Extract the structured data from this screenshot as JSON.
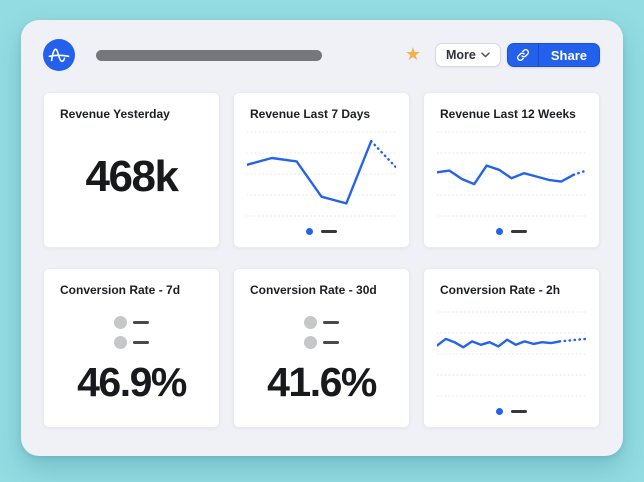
{
  "header": {
    "logo": {
      "icon": "amplitude-logo",
      "bg_color": "#2360ec"
    },
    "title_placeholder": {
      "type": "redacted-bar",
      "color": "#76777b"
    },
    "star": {
      "icon": "star-icon",
      "glyph": "★",
      "color": "#f0b24e",
      "state": "favorited"
    },
    "more_button": {
      "label": "More",
      "caret_icon": "chevron-down-icon"
    },
    "share_button": {
      "label": "Share",
      "icon": "link-icon",
      "color": "#2361ec"
    }
  },
  "accent": {
    "chart_blue": "#2563eb",
    "legend_dash": "#37393e",
    "gridline": "#e6e7e9",
    "background_teal": "#93dce2",
    "panel_background": "#eff1f6"
  },
  "tiles": [
    {
      "title": "Revenue Yesterday",
      "type": "metric",
      "value": "468k"
    },
    {
      "title": "Revenue Last 7 Days",
      "type": "line-chart",
      "chart_ref": 0
    },
    {
      "title": "Revenue Last 12 Weeks",
      "type": "line-chart",
      "chart_ref": 1
    },
    {
      "title": "Conversion Rate - 7d",
      "type": "funnel-metric",
      "value": "46.9%",
      "steps": 2
    },
    {
      "title": "Conversion Rate - 30d",
      "type": "funnel-metric",
      "value": "41.6%",
      "steps": 2
    },
    {
      "title": "Conversion Rate - 2h",
      "type": "line-chart",
      "chart_ref": 2
    }
  ],
  "chart_data": [
    {
      "type": "line",
      "title": "Revenue Last 7 Days",
      "x": [
        1,
        2,
        3,
        4,
        5,
        6,
        7
      ],
      "values": [
        0.61,
        0.69,
        0.65,
        0.23,
        0.15,
        0.89,
        0.58
      ],
      "dotted_tail_points": 1,
      "line_color": "#2563eb",
      "grid": "5 dotted horizontal gridlines",
      "legend": "single series: blue dot + dark dash, centered below",
      "note": "sparkline style; no axis tick labels shown; values are relative heights 0-1; final segment dotted (incomplete period)"
    },
    {
      "type": "line",
      "title": "Revenue Last 12 Weeks",
      "x": [
        1,
        2,
        3,
        4,
        5,
        6,
        7,
        8,
        9,
        10,
        11,
        12,
        13
      ],
      "values": [
        0.52,
        0.54,
        0.44,
        0.38,
        0.6,
        0.55,
        0.45,
        0.51,
        0.47,
        0.43,
        0.41,
        0.49,
        0.54
      ],
      "dotted_tail_points": 1,
      "line_color": "#2563eb",
      "grid": "5 dotted horizontal gridlines",
      "legend": "single series: blue dot + dark dash, centered below",
      "note": "sparkline style; no axis tick labels shown; values are relative heights 0-1; final segment dotted (incomplete period)"
    },
    {
      "type": "line",
      "title": "Conversion Rate - 2h",
      "x": [
        1,
        2,
        3,
        4,
        5,
        6,
        7,
        8,
        9,
        10,
        11,
        12,
        13,
        14,
        15,
        16,
        17,
        18
      ],
      "values": [
        0.6,
        0.68,
        0.64,
        0.58,
        0.65,
        0.61,
        0.64,
        0.59,
        0.67,
        0.61,
        0.65,
        0.62,
        0.64,
        0.63,
        0.65,
        0.66,
        0.67,
        0.68
      ],
      "dotted_tail_points": 3,
      "line_color": "#2563eb",
      "grid": "5 dotted horizontal gridlines",
      "legend": "single series: blue dot + dark dash, centered below",
      "note": "sparkline style; no axis tick labels shown; values are relative heights 0-1; trailing points dotted (incomplete period)"
    }
  ]
}
